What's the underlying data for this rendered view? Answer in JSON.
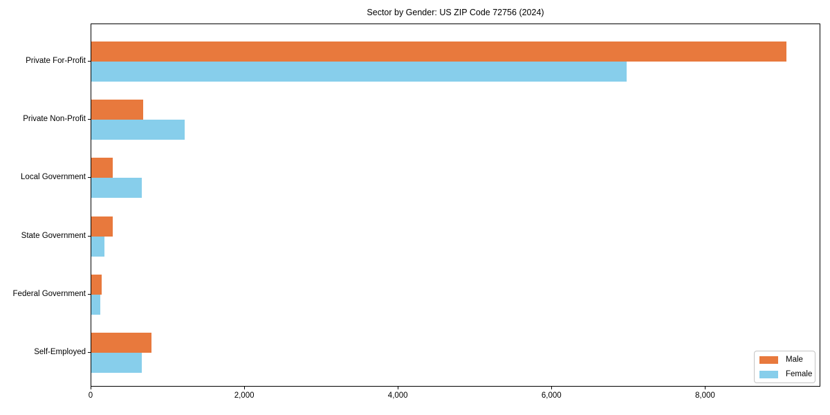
{
  "chart_data": {
    "type": "bar",
    "orientation": "horizontal",
    "title": "Sector by Gender: US ZIP Code 72756 (2024)",
    "categories": [
      "Private For-Profit",
      "Private Non-Profit",
      "Local Government",
      "State Government",
      "Federal Government",
      "Self-Employed"
    ],
    "series": [
      {
        "name": "Male",
        "color": "#e8793d",
        "values": [
          9045,
          675,
          280,
          280,
          135,
          785
        ]
      },
      {
        "name": "Female",
        "color": "#87ceeb",
        "values": [
          6970,
          1215,
          660,
          170,
          120,
          660
        ]
      }
    ],
    "xlabel": "",
    "ylabel": "",
    "xlim": [
      0,
      9500
    ],
    "xticks": [
      0,
      2000,
      4000,
      6000,
      8000
    ],
    "xtick_labels": [
      "0",
      "2,000",
      "4,000",
      "6,000",
      "8,000"
    ],
    "grid": false,
    "legend": {
      "position": "lower right",
      "entries": [
        "Male",
        "Female"
      ]
    }
  }
}
